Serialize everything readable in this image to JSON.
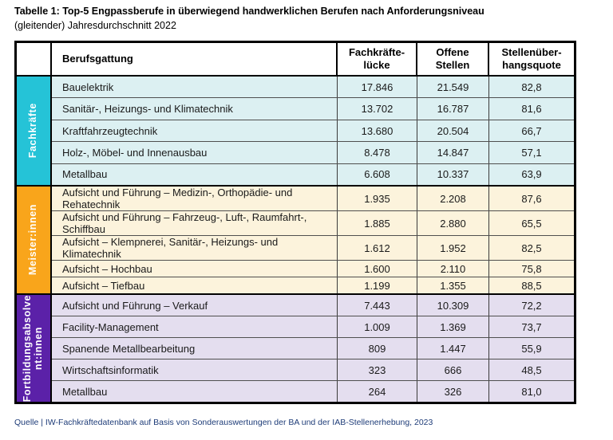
{
  "title": {
    "line1": "Tabelle 1: Top-5 Engpassberufe in überwiegend handwerklichen Berufen nach Anforderungsniveau",
    "line2": "(gleitender) Jahresdurchschnitt 2022"
  },
  "table": {
    "header_lines": [
      [
        "Berufsgattung"
      ],
      [
        "Fachkräfte-",
        "lücke"
      ],
      [
        "Offene",
        "Stellen"
      ],
      [
        "Stellenüber-",
        "hangsquote"
      ]
    ],
    "groups": [
      {
        "label": "Fachkräfte",
        "label_lines": [
          "Fachkräfte"
        ],
        "band_color": "#25C3D7",
        "row_bg": "#DCF0F2",
        "rows": [
          {
            "beruf": "Bauelektrik",
            "fachkraefteluecke": "17.846",
            "offene_stellen": "21.549",
            "quote": "82,8"
          },
          {
            "beruf": "Sanitär-, Heizungs- und Klimatechnik",
            "fachkraefteluecke": "13.702",
            "offene_stellen": "16.787",
            "quote": "81,6"
          },
          {
            "beruf": "Kraftfahrzeugtechnik",
            "fachkraefteluecke": "13.680",
            "offene_stellen": "20.504",
            "quote": "66,7"
          },
          {
            "beruf": "Holz-, Möbel- und Innenausbau",
            "fachkraefteluecke": "8.478",
            "offene_stellen": "14.847",
            "quote": "57,1"
          },
          {
            "beruf": "Metallbau",
            "fachkraefteluecke": "6.608",
            "offene_stellen": "10.337",
            "quote": "63,9"
          }
        ]
      },
      {
        "label": "Meister:innen",
        "label_lines": [
          "Meister:innen"
        ],
        "band_color": "#F9A51B",
        "row_bg": "#FCF3DC",
        "rows": [
          {
            "beruf": "Aufsicht und Führung – Medizin-, Orthopädie- und Rehatechnik",
            "fachkraefteluecke": "1.935",
            "offene_stellen": "2.208",
            "quote": "87,6"
          },
          {
            "beruf": "Aufsicht und Führung – Fahrzeug-, Luft-, Raumfahrt-, Schiffbau",
            "fachkraefteluecke": "1.885",
            "offene_stellen": "2.880",
            "quote": "65,5"
          },
          {
            "beruf": "Aufsicht – Klempnerei, Sanitär-, Heizungs- und Klimatechnik",
            "fachkraefteluecke": "1.612",
            "offene_stellen": "1.952",
            "quote": "82,5"
          },
          {
            "beruf": "Aufsicht – Hochbau",
            "fachkraefteluecke": "1.600",
            "offene_stellen": "2.110",
            "quote": "75,8"
          },
          {
            "beruf": "Aufsicht – Tiefbau",
            "fachkraefteluecke": "1.199",
            "offene_stellen": "1.355",
            "quote": "88,5"
          }
        ]
      },
      {
        "label": "Fortbildungsabsolvent:innen",
        "label_lines": [
          "Fortbildungsabsolve",
          "nt:innen"
        ],
        "band_color": "#5B21A8",
        "row_bg": "#E4DEEF",
        "rows": [
          {
            "beruf": "Aufsicht und Führung – Verkauf",
            "fachkraefteluecke": "7.443",
            "offene_stellen": "10.309",
            "quote": "72,2"
          },
          {
            "beruf": "Facility-Management",
            "fachkraefteluecke": "1.009",
            "offene_stellen": "1.369",
            "quote": "73,7"
          },
          {
            "beruf": "Spanende Metallbearbeitung",
            "fachkraefteluecke": "809",
            "offene_stellen": "1.447",
            "quote": "55,9"
          },
          {
            "beruf": "Wirtschaftsinformatik",
            "fachkraefteluecke": "323",
            "offene_stellen": "666",
            "quote": "48,5"
          },
          {
            "beruf": "Metallbau",
            "fachkraefteluecke": "264",
            "offene_stellen": "326",
            "quote": "81,0"
          }
        ]
      }
    ]
  },
  "source": "Quelle | IW-Fachkräftedatenbank auf Basis von Sonderauswertungen der BA und der IAB-Stellenerhebung, 2023",
  "colors": {
    "footer_text": "#1E3C78",
    "border_black": "#000000",
    "row_separator": "#4f4f4f"
  }
}
